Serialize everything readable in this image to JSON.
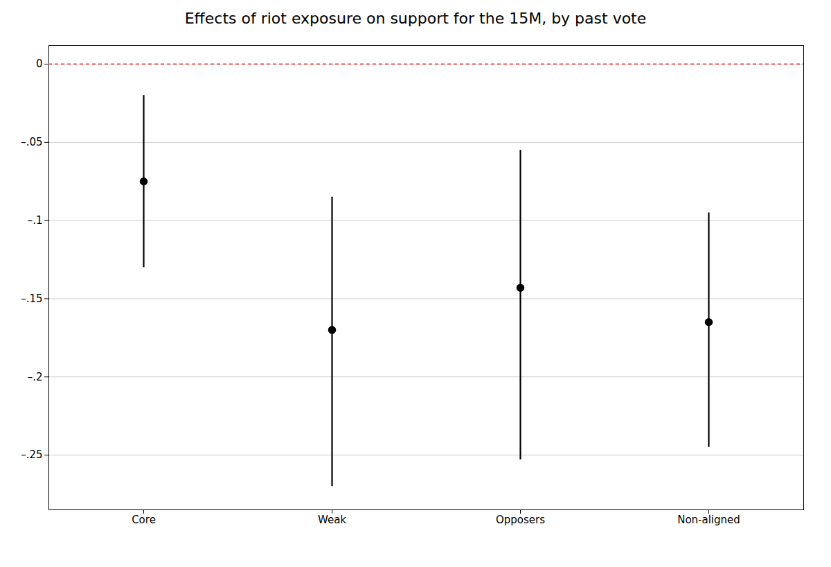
{
  "chart_data": {
    "type": "errorbar",
    "title": "Effects of riot exposure on support for the 15M, by past vote",
    "categories": [
      "Core",
      "Weak",
      "Opposers",
      "Non-aligned"
    ],
    "values": [
      -0.075,
      -0.17,
      -0.143,
      -0.165
    ],
    "ci_lower": [
      -0.13,
      -0.27,
      -0.253,
      -0.245
    ],
    "ci_upper": [
      -0.02,
      -0.085,
      -0.055,
      -0.095
    ],
    "ylim": [
      -0.285,
      0.012
    ],
    "yticks": [
      0,
      {
        "value": -0.05,
        "label": "–.05"
      },
      {
        "value": -0.1,
        "label": "–.1"
      },
      {
        "value": -0.15,
        "label": "–.15"
      },
      {
        "value": -0.2,
        "label": "–.2"
      },
      {
        "value": -0.25,
        "label": "–.25"
      }
    ],
    "grid": true,
    "color": "#000000",
    "reference_line": {
      "y": 0,
      "color": "#e05c5c"
    }
  }
}
